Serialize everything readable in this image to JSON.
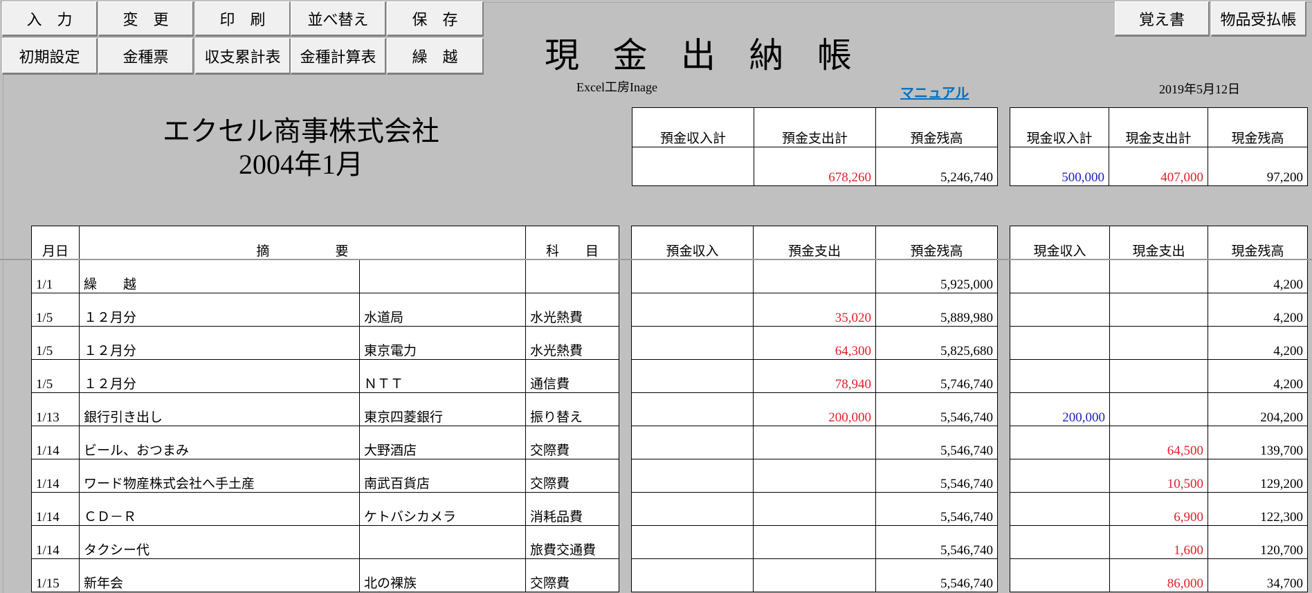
{
  "buttons_row1": [
    "入　力",
    "変　更",
    "印　刷",
    "並べ替え",
    "保　存"
  ],
  "buttons_row2": [
    "初期設定",
    "金種票",
    "収支累計表",
    "金種計算表",
    "繰　越"
  ],
  "buttons_right": [
    "覚え書",
    "物品受払帳"
  ],
  "title": "現 金 出 納 帳",
  "subtitle": "Excel工房Inage",
  "manual_link": "マニュアル",
  "date": "2019年5月12日",
  "company": "エクセル商事株式会社",
  "period": "2004年1月",
  "colors": {
    "background": "#c0c0c0",
    "expense": "#e0202a",
    "income": "#2020c0",
    "link": "#0070c0"
  },
  "summary_deposit": {
    "headers": [
      "預金収入計",
      "預金支出計",
      "預金残高"
    ],
    "values": [
      "",
      "678,260",
      "5,246,740"
    ]
  },
  "summary_cash": {
    "headers": [
      "現金収入計",
      "現金支出計",
      "現金残高"
    ],
    "values": [
      "500,000",
      "407,000",
      "97,200"
    ]
  },
  "ledger": {
    "headers": {
      "date": "月日",
      "desc": "摘　　　　　要",
      "account": "科　　目",
      "dep_in": "預金収入",
      "dep_out": "預金支出",
      "dep_bal": "預金残高",
      "cash_in": "現金収入",
      "cash_out": "現金支出",
      "cash_bal": "現金残高"
    },
    "rows": [
      {
        "date": "1/1",
        "desc": "繰　　越",
        "payee": "",
        "account": "",
        "dep_in": "",
        "dep_out": "",
        "dep_bal": "5,925,000",
        "cash_in": "",
        "cash_out": "",
        "cash_bal": "4,200"
      },
      {
        "date": "1/5",
        "desc": "１２月分",
        "payee": "水道局",
        "account": "水光熱費",
        "dep_in": "",
        "dep_out": "35,020",
        "dep_bal": "5,889,980",
        "cash_in": "",
        "cash_out": "",
        "cash_bal": "4,200"
      },
      {
        "date": "1/5",
        "desc": "１２月分",
        "payee": "東京電力",
        "account": "水光熱費",
        "dep_in": "",
        "dep_out": "64,300",
        "dep_bal": "5,825,680",
        "cash_in": "",
        "cash_out": "",
        "cash_bal": "4,200"
      },
      {
        "date": "1/5",
        "desc": "１２月分",
        "payee": "ＮＴＴ",
        "account": "通信費",
        "dep_in": "",
        "dep_out": "78,940",
        "dep_bal": "5,746,740",
        "cash_in": "",
        "cash_out": "",
        "cash_bal": "4,200"
      },
      {
        "date": "1/13",
        "desc": "銀行引き出し",
        "payee": "東京四菱銀行",
        "account": "振り替え",
        "dep_in": "",
        "dep_out": "200,000",
        "dep_bal": "5,546,740",
        "cash_in": "200,000",
        "cash_out": "",
        "cash_bal": "204,200"
      },
      {
        "date": "1/14",
        "desc": "ビール、おつまみ",
        "payee": "大野酒店",
        "account": "交際費",
        "dep_in": "",
        "dep_out": "",
        "dep_bal": "5,546,740",
        "cash_in": "",
        "cash_out": "64,500",
        "cash_bal": "139,700"
      },
      {
        "date": "1/14",
        "desc": "ワード物産株式会社へ手土産",
        "payee": "南武百貨店",
        "account": "交際費",
        "dep_in": "",
        "dep_out": "",
        "dep_bal": "5,546,740",
        "cash_in": "",
        "cash_out": "10,500",
        "cash_bal": "129,200"
      },
      {
        "date": "1/14",
        "desc": "ＣＤ－Ｒ",
        "payee": "ケトバシカメラ",
        "account": "消耗品費",
        "dep_in": "",
        "dep_out": "",
        "dep_bal": "5,546,740",
        "cash_in": "",
        "cash_out": "6,900",
        "cash_bal": "122,300"
      },
      {
        "date": "1/14",
        "desc": "タクシー代",
        "payee": "",
        "account": "旅費交通費",
        "dep_in": "",
        "dep_out": "",
        "dep_bal": "5,546,740",
        "cash_in": "",
        "cash_out": "1,600",
        "cash_bal": "120,700"
      },
      {
        "date": "1/15",
        "desc": "新年会",
        "payee": "北の裸族",
        "account": "交際費",
        "dep_in": "",
        "dep_out": "",
        "dep_bal": "5,546,740",
        "cash_in": "",
        "cash_out": "86,000",
        "cash_bal": "34,700"
      }
    ]
  }
}
